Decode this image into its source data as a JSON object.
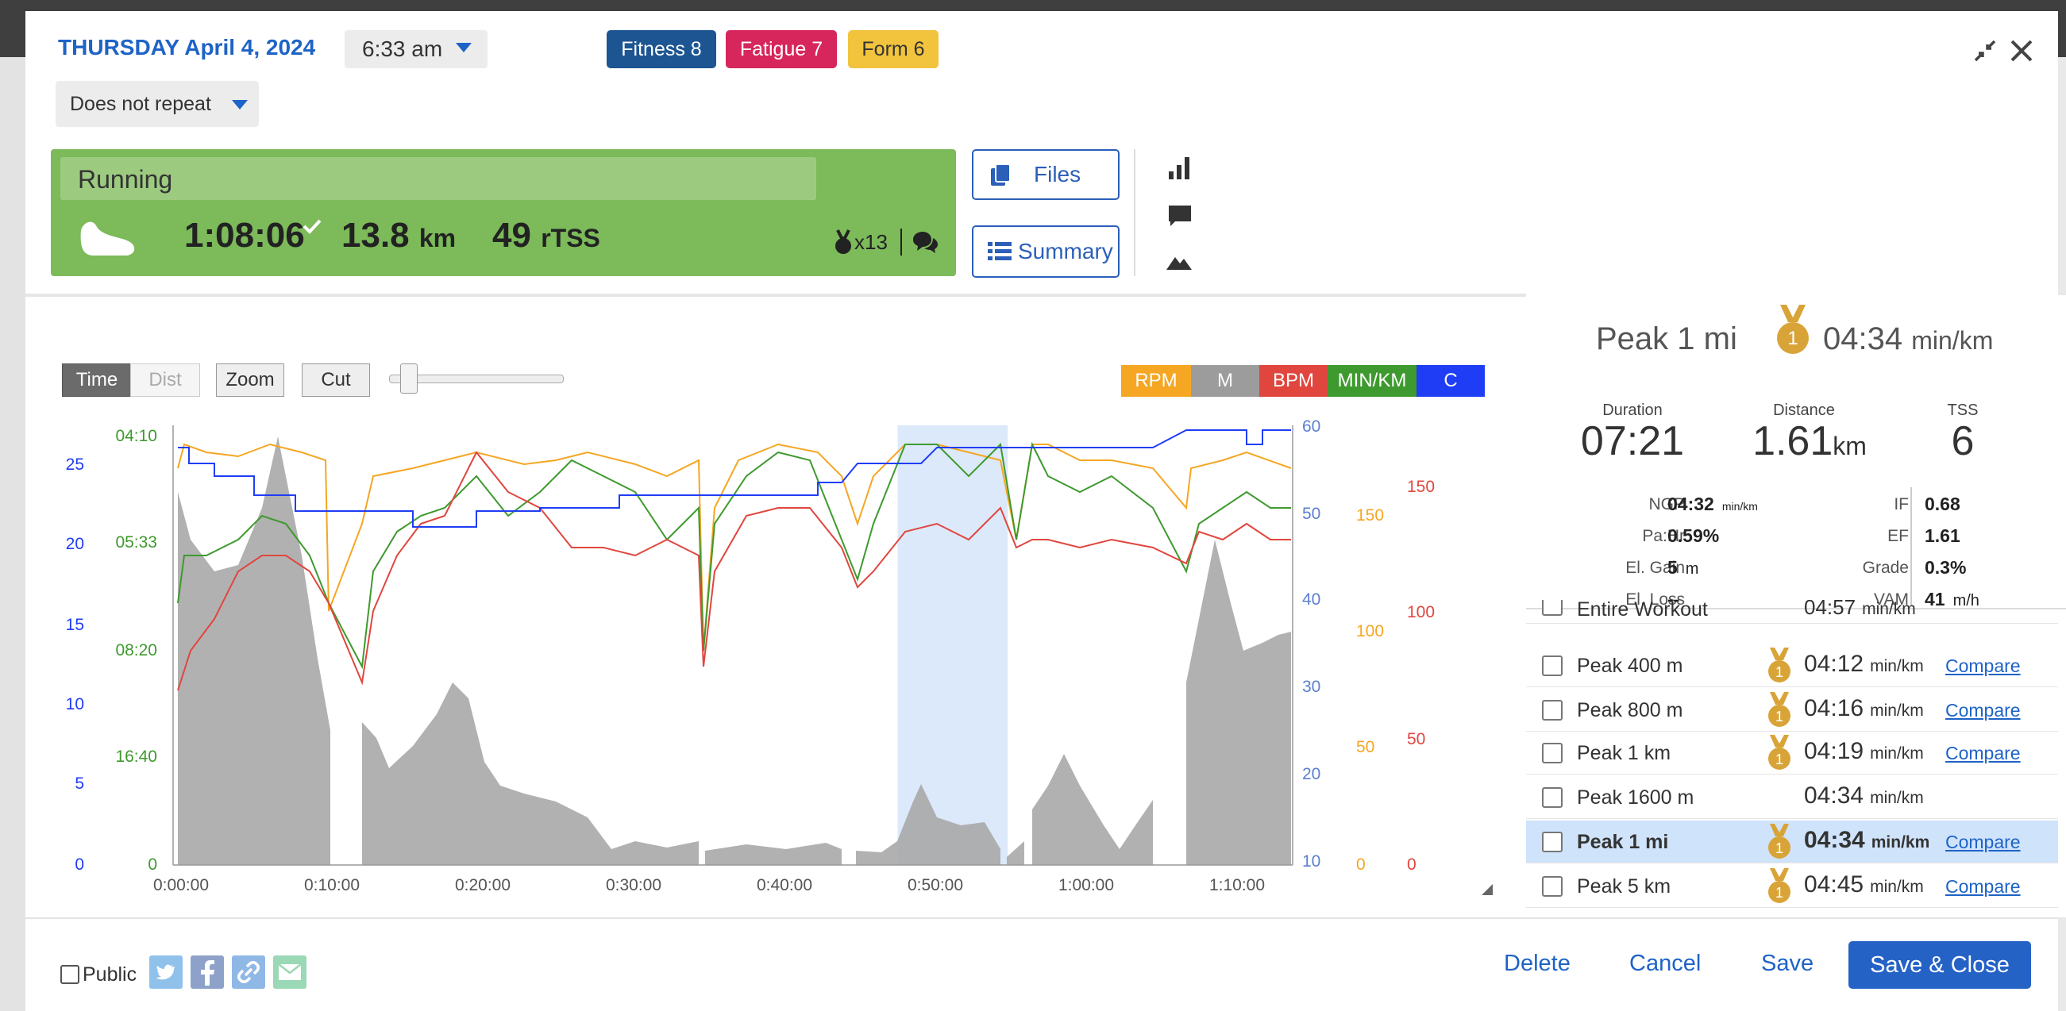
{
  "header": {
    "date": "THURSDAY April 4, 2024",
    "time": "6:33 am",
    "badges": [
      {
        "label": "Fitness 8",
        "color": "#1d5592"
      },
      {
        "label": "Fatigue 7",
        "color": "#d6265c"
      },
      {
        "label": "Form 6",
        "color": "#f2c33d"
      }
    ],
    "repeat": "Does not repeat",
    "icons": [
      "minimize-icon",
      "close-icon"
    ]
  },
  "workout": {
    "title": "Running",
    "duration": "1:08:06",
    "distance": "13.8",
    "distance_unit": "km",
    "tss": "49",
    "tss_unit": "rTSS",
    "medals": "x13",
    "files_label": "Files",
    "summary_label": "Summary"
  },
  "chart_controls": {
    "time": "Time",
    "dist": "Dist",
    "zoom": "Zoom",
    "cut": "Cut",
    "channels": [
      {
        "label": "RPM",
        "color": "#f5a623"
      },
      {
        "label": "M",
        "color": "#9c9c9c"
      },
      {
        "label": "BPM",
        "color": "#e0463e"
      },
      {
        "label": "MIN/KM",
        "color": "#3e9a2e"
      },
      {
        "label": "C",
        "color": "#1f3df5"
      }
    ]
  },
  "chart_data": {
    "type": "line",
    "x_ticks": [
      "0:00:00",
      "0:10:00",
      "0:20:00",
      "0:30:00",
      "0:40:00",
      "0:50:00",
      "1:00:00",
      "1:10:00"
    ],
    "axes": {
      "left_blue": [
        "25",
        "20",
        "15",
        "10",
        "5",
        "0"
      ],
      "left_green": [
        "04:10",
        "05:33",
        "08:20",
        "16:40",
        "0"
      ],
      "right_blue": [
        "60",
        "50",
        "40",
        "30",
        "20",
        "10"
      ],
      "right_orange": [
        "150",
        "100",
        "50",
        "0"
      ],
      "right_red": [
        "150",
        "100",
        "50",
        "0"
      ]
    },
    "series": [
      {
        "name": "M",
        "color": "#9c9c9c"
      },
      {
        "name": "RPM",
        "color": "#f5a623"
      },
      {
        "name": "MIN/KM",
        "color": "#3e9a2e"
      },
      {
        "name": "BPM",
        "color": "#e0463e"
      },
      {
        "name": "C",
        "color": "#1f3df5"
      }
    ],
    "selection": {
      "start": "0:47:00",
      "end": "0:54:20"
    }
  },
  "peak": {
    "title": "Peak 1 mi",
    "pace": "04:34",
    "pace_unit": "min/km",
    "medal_rank": "1",
    "duration_label": "Duration",
    "duration": "07:21",
    "distance_label": "Distance",
    "distance": "1.61",
    "distance_unit": "km",
    "tss_label": "TSS",
    "tss": "6",
    "metrics_left": [
      {
        "label": "NGP",
        "value": "04:32",
        "unit": "min/km"
      },
      {
        "label": "Pa:Hr",
        "value": "0.59%",
        "unit": ""
      },
      {
        "label": "El. Gain",
        "value": "5",
        "unit": "m"
      },
      {
        "label": "El. Loss",
        "value": "--",
        "unit": ""
      }
    ],
    "metrics_right": [
      {
        "label": "IF",
        "value": "0.68",
        "unit": ""
      },
      {
        "label": "EF",
        "value": "1.61",
        "unit": ""
      },
      {
        "label": "Grade",
        "value": "0.3%",
        "unit": ""
      },
      {
        "label": "VAM",
        "value": "41",
        "unit": "m/h"
      }
    ]
  },
  "peaks_list": [
    {
      "name": "Entire Workout",
      "pace": "04:57",
      "unit": "min/km",
      "medal": false,
      "compare": ""
    },
    {
      "name": "Peak 400 m",
      "pace": "04:12",
      "unit": "min/km",
      "medal": true,
      "compare": "Compare"
    },
    {
      "name": "Peak 800 m",
      "pace": "04:16",
      "unit": "min/km",
      "medal": true,
      "compare": "Compare"
    },
    {
      "name": "Peak 1 km",
      "pace": "04:19",
      "unit": "min/km",
      "medal": true,
      "compare": "Compare"
    },
    {
      "name": "Peak 1600 m",
      "pace": "04:34",
      "unit": "min/km",
      "medal": false,
      "compare": ""
    },
    {
      "name": "Peak 1 mi",
      "pace": "04:34",
      "unit": "min/km",
      "medal": true,
      "compare": "Compare",
      "selected": true
    },
    {
      "name": "Peak 5 km",
      "pace": "04:45",
      "unit": "min/km",
      "medal": true,
      "compare": "Compare"
    }
  ],
  "footer": {
    "public_label": "Public",
    "share_icons": [
      {
        "name": "twitter-icon",
        "color": "#8fc1ea"
      },
      {
        "name": "facebook-icon",
        "color": "#8ea2c9"
      },
      {
        "name": "link-icon",
        "color": "#90b8e6"
      },
      {
        "name": "email-icon",
        "color": "#9bd8b5"
      }
    ],
    "delete": "Delete",
    "cancel": "Cancel",
    "save": "Save",
    "save_close": "Save & Close"
  }
}
